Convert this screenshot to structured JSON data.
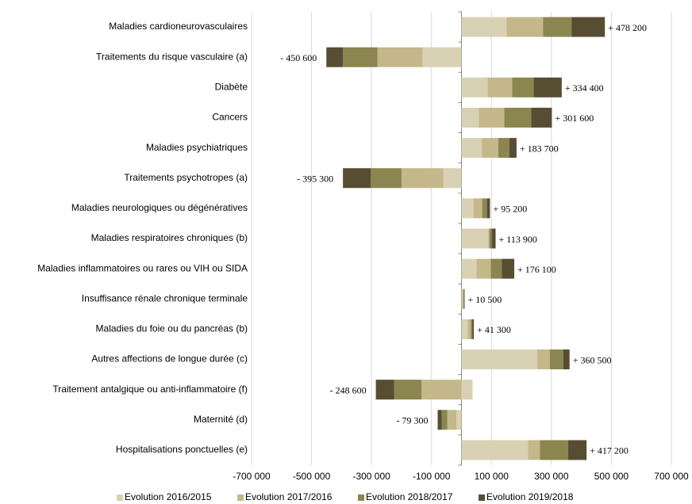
{
  "chart_data": {
    "type": "stacked_hbar",
    "categories": [
      "Maladies cardioneurovasculaires",
      "Traitements du risque vasculaire (a)",
      "Diabète",
      "Cancers",
      "Maladies psychiatriques",
      "Traitements psychotropes (a)",
      "Maladies neurologiques ou dégénératives",
      "Maladies respiratoires chroniques (b)",
      "Maladies inflammatoires ou rares ou VIH ou SIDA",
      "Insuffisance rénale chronique terminale",
      "Maladies du foie ou du pancréas (b)",
      "Autres affections de longue durée (c)",
      "Traitement antalgique ou anti-inflammatoire (f)",
      "Maternité (d)",
      "Hospitalisations ponctuelles (e)"
    ],
    "series": [
      {
        "name": "Evolution 2016/2015",
        "color": "#d9d1b4",
        "values": [
          150000,
          -130000,
          87000,
          58000,
          68000,
          -60000,
          40000,
          90000,
          50000,
          3000,
          21000,
          252000,
          37000,
          -17000,
          222000
        ]
      },
      {
        "name": "Evolution 2017/2016",
        "color": "#c4b88a",
        "values": [
          122000,
          -150000,
          82000,
          85000,
          55000,
          -140000,
          29000,
          3000,
          48000,
          3000,
          10000,
          43000,
          -133000,
          -30000,
          40000
        ]
      },
      {
        "name": "Evolution 2018/2017",
        "color": "#8b8550",
        "values": [
          95000,
          -115000,
          72000,
          90000,
          37000,
          -103000,
          16000,
          8000,
          37000,
          2500,
          5000,
          45000,
          -92000,
          -19000,
          94000
        ]
      },
      {
        "name": "Evolution 2019/2018",
        "color": "#574d33",
        "values": [
          111200,
          -55600,
          93400,
          68600,
          23700,
          -92300,
          10200,
          12900,
          41100,
          2000,
          5300,
          20500,
          -60600,
          -13300,
          61200
        ]
      }
    ],
    "totals": [
      478200,
      -450600,
      334400,
      301600,
      183700,
      -395300,
      95200,
      113900,
      176100,
      10500,
      41300,
      360500,
      -248600,
      -79300,
      417200
    ],
    "total_labels": [
      "+ 478 200",
      "- 450 600",
      "+ 334 400",
      "+ 301 600",
      "+ 183 700",
      "- 395 300",
      "+ 95 200",
      "+ 113 900",
      "+ 176 100",
      "+ 10 500",
      "+ 41 300",
      "+ 360 500",
      "- 248 600",
      "- 79 300",
      "+ 417 200"
    ],
    "xlim": [
      -700000,
      700000
    ],
    "xticks": [
      {
        "value": -700000,
        "label": "-700 000"
      },
      {
        "value": -500000,
        "label": "-500 000"
      },
      {
        "value": -300000,
        "label": "-300 000"
      },
      {
        "value": -100000,
        "label": "-100 000"
      },
      {
        "value": 100000,
        "label": "100 000"
      },
      {
        "value": 300000,
        "label": "300 000"
      },
      {
        "value": 500000,
        "label": "500 000"
      },
      {
        "value": 700000,
        "label": "700 000"
      }
    ],
    "grid": true,
    "legend": "bottom"
  }
}
